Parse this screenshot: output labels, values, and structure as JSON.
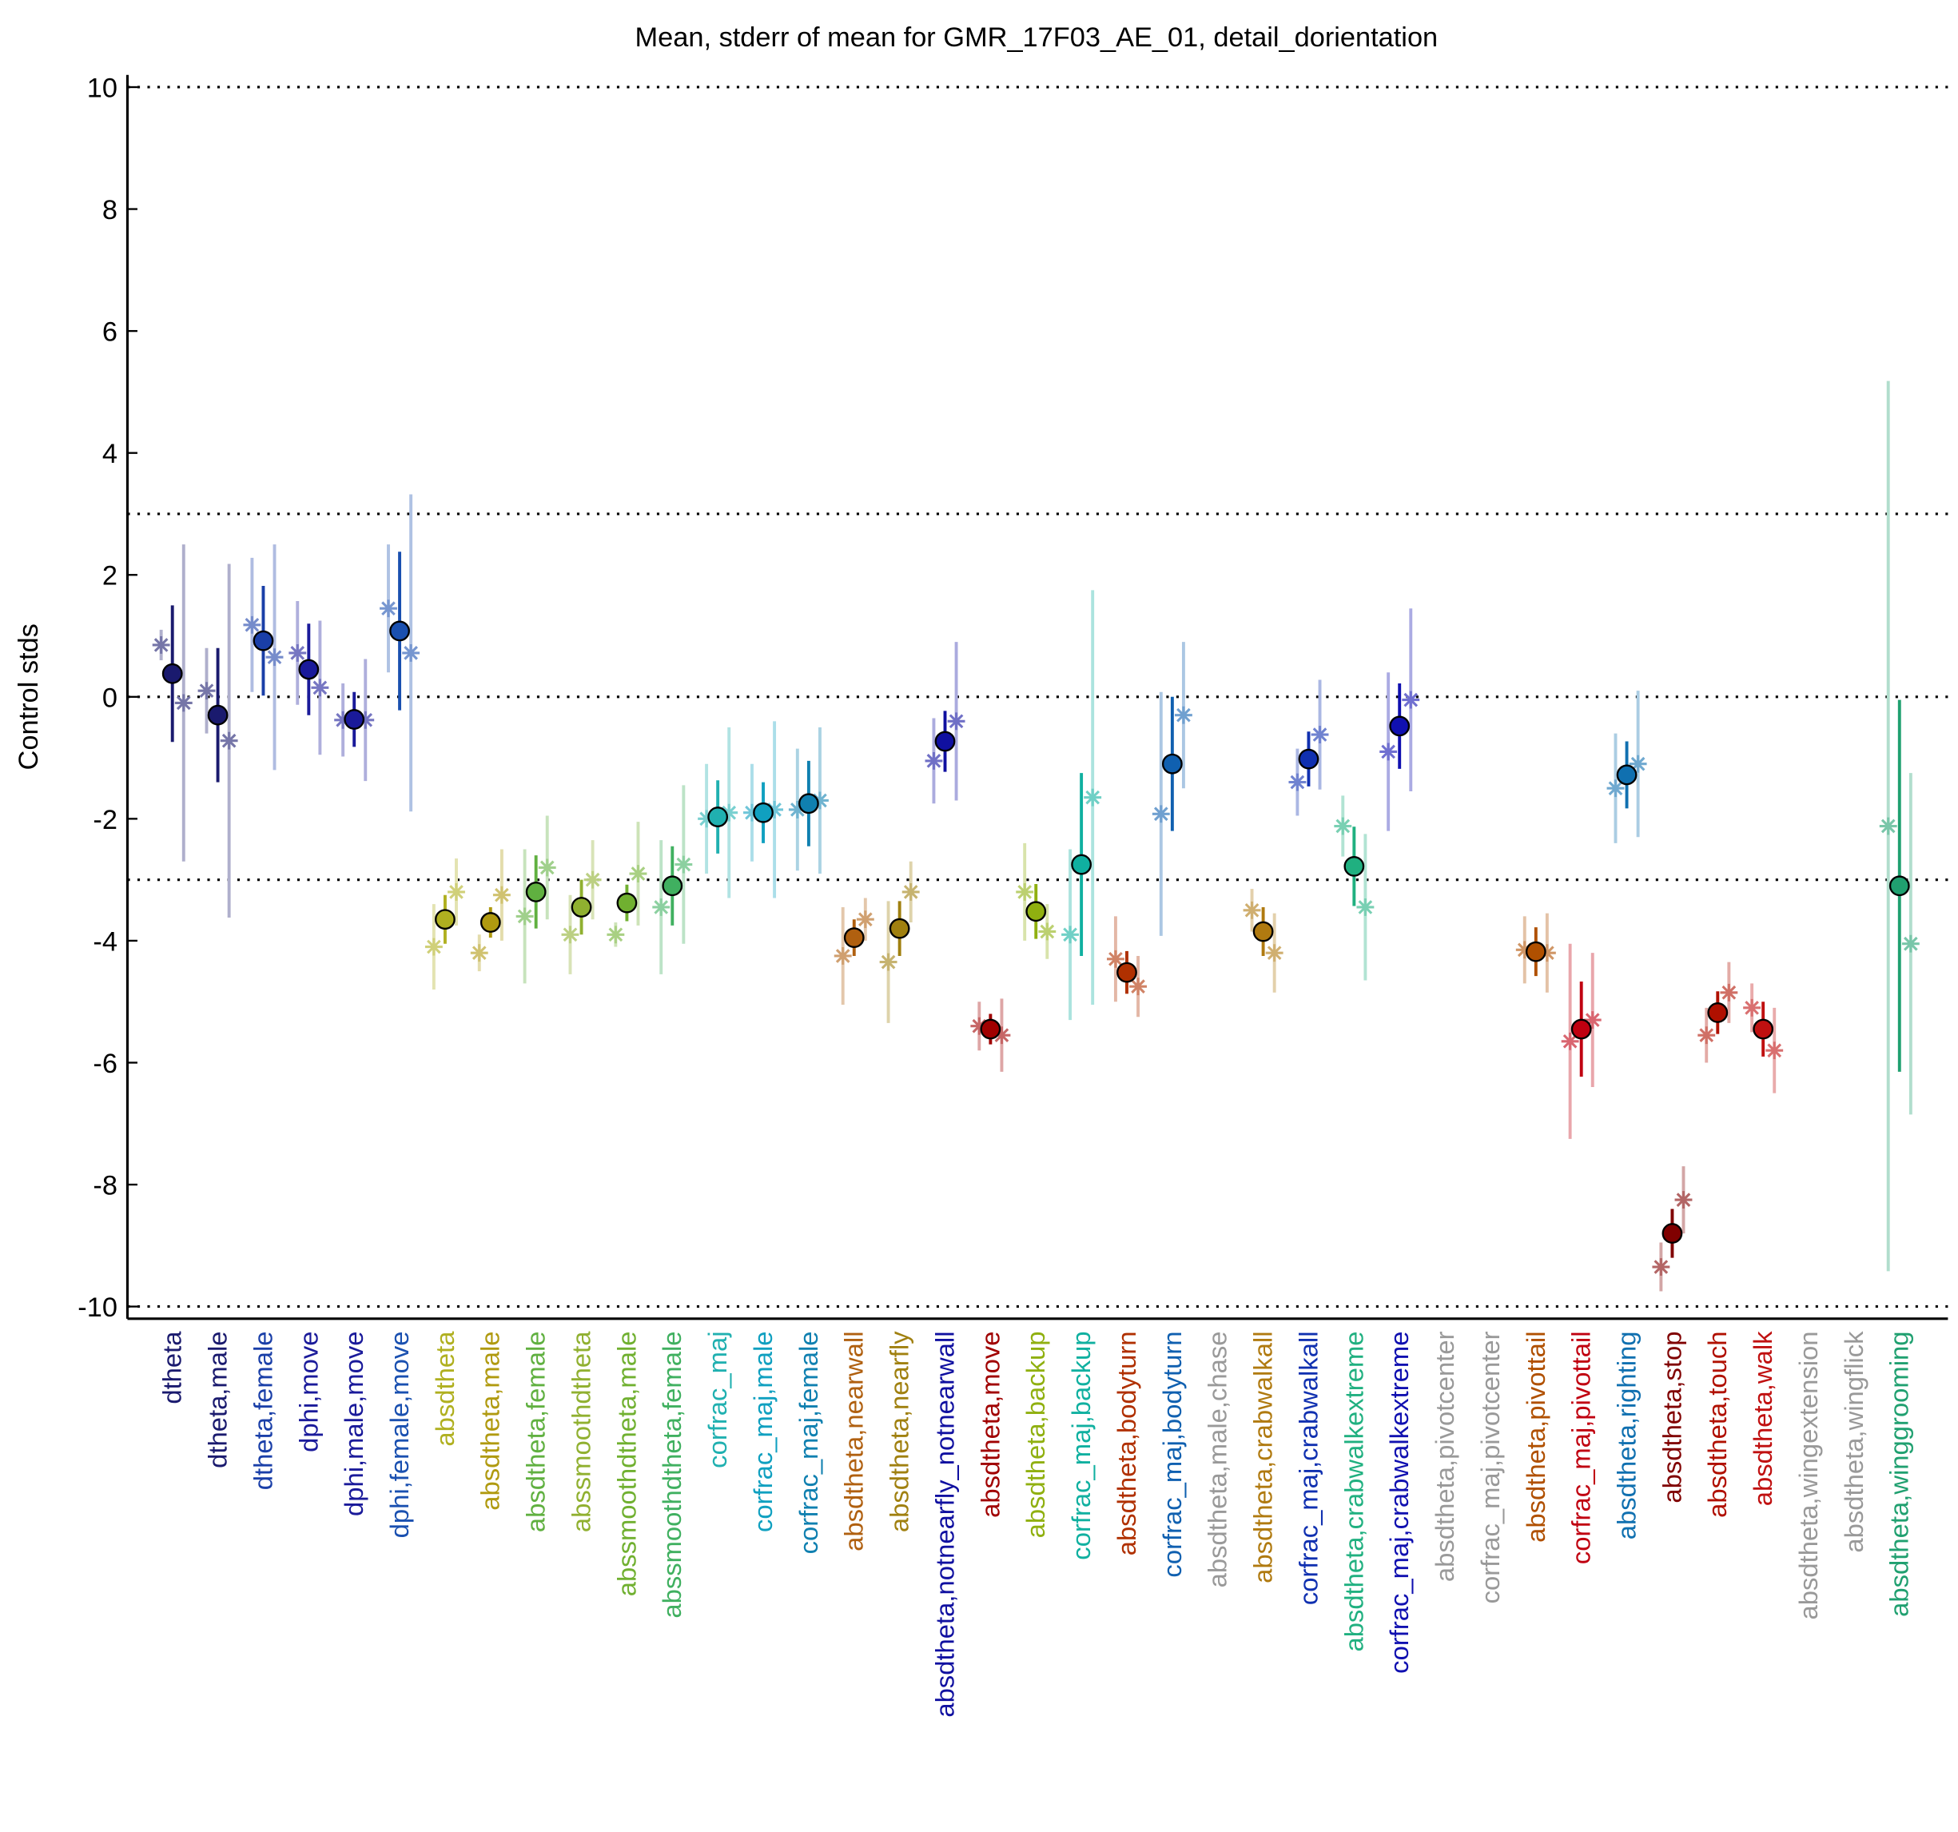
{
  "chart_data": {
    "type": "errorbar",
    "title": "Mean, stderr of mean for GMR_17F03_AE_01, detail_dorientation",
    "y_label": "Control stds",
    "categories": [
      "dtheta",
      "dtheta,male",
      "dtheta,female",
      "dphi,move",
      "dphi,male,move",
      "dphi,female,move",
      "absdtheta",
      "absdtheta,male",
      "absdtheta,female",
      "abssmoothdtheta",
      "abssmoothdtheta,male",
      "abssmoothdtheta,female",
      "corfrac_maj",
      "corfrac_maj,male",
      "corfrac_maj,female",
      "absdtheta,nearwall",
      "absdtheta,nearfly",
      "absdtheta,notnearfly_notnearwall",
      "absdtheta,move",
      "absdtheta,backup",
      "corfrac_maj,backup",
      "absdtheta,bodyturn",
      "corfrac_maj,bodyturn",
      "absdtheta,male,chase",
      "absdtheta,crabwalkall",
      "corfrac_maj,crabwalkall",
      "absdtheta,crabwalkextreme",
      "corfrac_maj,crabwalkextreme",
      "absdtheta,pivotcenter",
      "corfrac_maj,pivotcenter",
      "absdtheta,pivottail",
      "corfrac_maj,pivottail",
      "absdtheta,righting",
      "absdtheta,stop",
      "absdtheta,touch",
      "absdtheta,walk",
      "absdtheta,wingextension",
      "absdtheta,wingflick",
      "absdtheta,winggrooming"
    ],
    "category_colors": [
      "#1a1a6e",
      "#1a1a6e",
      "#1a3fa8",
      "#1a1a9a",
      "#1a1a9a",
      "#1a50b0",
      "#b0b020",
      "#b09a10",
      "#60b040",
      "#90b030",
      "#70b030",
      "#40b060",
      "#20b0b0",
      "#10a0c0",
      "#1080b0",
      "#b06010",
      "#a08010",
      "#1010a0",
      "#a00000",
      "#90b010",
      "#10b0a0",
      "#b03000",
      "#1060b0",
      "#999999",
      "#b07a10",
      "#1030b0",
      "#20b080",
      "#1010b0",
      "#999999",
      "#999999",
      "#b05000",
      "#c00010",
      "#1070b0",
      "#800000",
      "#b01000",
      "#c01010",
      "#999999",
      "#999999",
      "#20a070"
    ],
    "series": [
      {
        "marker": "circle",
        "values": [
          0.38,
          -0.3,
          0.92,
          0.45,
          -0.37,
          1.08,
          -3.65,
          -3.7,
          -3.2,
          -3.45,
          -3.38,
          -3.1,
          -1.97,
          -1.9,
          -1.75,
          -3.95,
          -3.8,
          -0.73,
          -5.45,
          -3.52,
          -2.75,
          -4.52,
          -1.1,
          null,
          -3.85,
          -1.02,
          -2.78,
          -0.48,
          null,
          null,
          -4.18,
          -5.45,
          -1.28,
          -8.8,
          -5.18,
          -5.45,
          null,
          null,
          -3.1
        ],
        "errors": [
          1.12,
          1.1,
          0.9,
          0.75,
          0.45,
          1.3,
          0.4,
          0.25,
          0.6,
          0.45,
          0.3,
          0.65,
          0.6,
          0.5,
          0.7,
          0.3,
          0.45,
          0.5,
          0.25,
          0.45,
          1.5,
          0.35,
          1.1,
          null,
          0.4,
          0.45,
          0.65,
          0.7,
          null,
          null,
          0.4,
          0.78,
          0.55,
          0.4,
          0.35,
          0.45,
          null,
          null,
          3.05
        ]
      },
      {
        "marker": "asterisk",
        "values": [
          0.85,
          0.1,
          1.18,
          0.72,
          -0.38,
          1.45,
          -4.1,
          -4.2,
          -3.6,
          -3.9,
          -3.9,
          -3.45,
          -2.0,
          -1.9,
          -1.85,
          -4.25,
          -4.35,
          -1.05,
          -5.4,
          -3.2,
          -3.9,
          -4.3,
          -1.92,
          null,
          -3.5,
          -1.4,
          -2.12,
          -0.9,
          null,
          null,
          -4.15,
          -5.65,
          -1.5,
          -9.35,
          -5.55,
          -5.1,
          null,
          null,
          -2.12
        ],
        "errors": [
          0.25,
          0.7,
          1.1,
          0.85,
          0.6,
          1.05,
          0.7,
          0.3,
          1.1,
          0.65,
          0.2,
          1.1,
          0.9,
          0.8,
          1.0,
          0.8,
          1.0,
          0.7,
          0.4,
          0.8,
          1.4,
          0.7,
          2.0,
          null,
          0.35,
          0.55,
          0.5,
          1.3,
          null,
          null,
          0.55,
          1.6,
          0.9,
          0.4,
          0.45,
          0.4,
          null,
          null,
          7.3
        ]
      },
      {
        "marker": "asterisk",
        "values": [
          -0.1,
          -0.72,
          0.65,
          0.15,
          -0.38,
          0.72,
          -3.2,
          -3.25,
          -2.8,
          -3.0,
          -2.9,
          -2.75,
          -1.9,
          -1.85,
          -1.7,
          -3.65,
          -3.2,
          -0.4,
          -5.55,
          -3.85,
          -1.65,
          -4.75,
          -0.3,
          null,
          -4.2,
          -0.62,
          -3.45,
          -0.05,
          null,
          null,
          -4.2,
          -5.3,
          -1.1,
          -8.25,
          -4.85,
          -5.8,
          null,
          null,
          -4.05
        ],
        "errors": [
          2.6,
          2.9,
          1.85,
          1.1,
          1.0,
          2.6,
          0.55,
          0.75,
          0.85,
          0.65,
          0.85,
          1.3,
          1.4,
          1.45,
          1.2,
          0.35,
          0.5,
          1.3,
          0.6,
          0.45,
          3.4,
          0.5,
          1.2,
          null,
          0.65,
          0.9,
          1.2,
          1.5,
          null,
          null,
          0.65,
          1.1,
          1.2,
          0.55,
          0.5,
          0.7,
          null,
          null,
          2.8
        ]
      }
    ],
    "ylim": [
      -10.2,
      10.2
    ],
    "yticks": [
      -10,
      -8,
      -6,
      -4,
      -2,
      0,
      2,
      4,
      6,
      8,
      10
    ],
    "reference_lines": [
      -10,
      -3,
      0,
      3,
      10
    ]
  }
}
